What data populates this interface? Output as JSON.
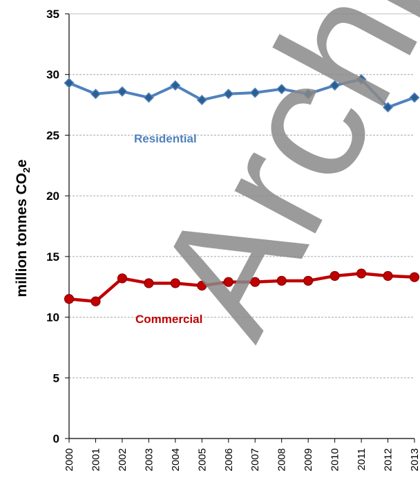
{
  "chart_data": {
    "type": "line",
    "ylabel_main": "million tonnes CO",
    "ylabel_sub": "2",
    "ylabel_tail": "e",
    "ylim": [
      0,
      35
    ],
    "yticks": [
      "0",
      "5",
      "10",
      "15",
      "20",
      "25",
      "30",
      "35"
    ],
    "x": [
      "2000",
      "2001",
      "2002",
      "2003",
      "2004",
      "2005",
      "2006",
      "2007",
      "2008",
      "2009",
      "2010",
      "2011",
      "2012",
      "2013"
    ],
    "grid": true,
    "series": [
      {
        "name": "Residential",
        "color": "#4f81bd",
        "marker": "diamond",
        "values": [
          29.3,
          28.4,
          28.6,
          28.1,
          29.1,
          27.9,
          28.4,
          28.5,
          28.8,
          28.4,
          29.1,
          29.6,
          27.3,
          28.1
        ]
      },
      {
        "name": "Commercial",
        "color": "#c00000",
        "marker": "circle",
        "values": [
          11.5,
          11.3,
          13.2,
          12.8,
          12.8,
          12.6,
          12.9,
          12.9,
          13.0,
          13.0,
          13.4,
          13.6,
          13.4,
          13.3
        ]
      }
    ],
    "watermark": "Archived"
  }
}
